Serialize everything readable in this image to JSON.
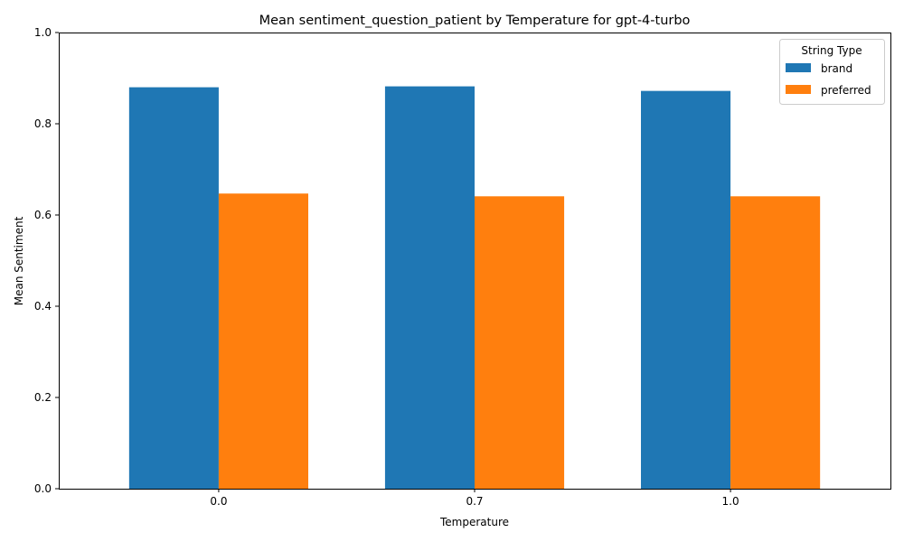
{
  "chart_data": {
    "type": "bar",
    "title": "Mean sentiment_question_patient by Temperature for gpt-4-turbo",
    "xlabel": "Temperature",
    "ylabel": "Mean Sentiment",
    "categories": [
      "0.0",
      "0.7",
      "1.0"
    ],
    "ylim": [
      0,
      1.0
    ],
    "yticks": [
      "0.0",
      "0.2",
      "0.4",
      "0.6",
      "0.8",
      "1.0"
    ],
    "grid": false,
    "legend": {
      "title": "String Type",
      "position": "top-right"
    },
    "series": [
      {
        "name": "brand",
        "color": "#1f77b4",
        "values": [
          0.88,
          0.882,
          0.872
        ]
      },
      {
        "name": "preferred",
        "color": "#ff7f0e",
        "values": [
          0.647,
          0.641,
          0.641
        ]
      }
    ]
  }
}
